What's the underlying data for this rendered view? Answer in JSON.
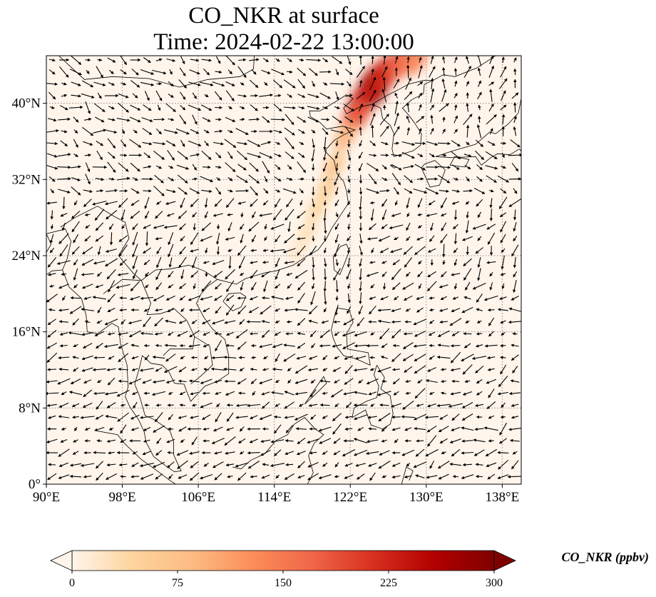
{
  "title": {
    "line1": "CO_NKR at surface",
    "line2": "Time: 2024-02-22 13:00:00"
  },
  "map": {
    "lon_range": [
      90,
      140
    ],
    "lat_range": [
      0,
      45
    ],
    "lon_ticks": [
      "90°E",
      "98°E",
      "106°E",
      "114°E",
      "122°E",
      "130°E",
      "138°E"
    ],
    "lon_tick_values": [
      90,
      98,
      106,
      114,
      122,
      130,
      138
    ],
    "lat_ticks": [
      "0°",
      "8°N",
      "16°N",
      "24°N",
      "32°N",
      "40°N"
    ],
    "lat_tick_values": [
      0,
      8,
      16,
      24,
      32,
      40
    ],
    "gridlines": "dotted",
    "background_color": "#fff5eb",
    "coastline_color": "#000000",
    "wind_vectors": true,
    "wind_arrow_color": "#000000"
  },
  "colorbar": {
    "label": "CO_NKR (ppbv)",
    "cmap": "OrRd",
    "ticks": [
      "0",
      "75",
      "150",
      "225",
      "300"
    ],
    "tick_values": [
      0,
      75,
      150,
      225,
      300
    ],
    "extend": "both",
    "colors": [
      "#fff5eb",
      "#fdd49e",
      "#fdbb84",
      "#fc8d59",
      "#ef6548",
      "#d7301f",
      "#b30000",
      "#7f0000"
    ]
  },
  "concentration_plume": [
    {
      "lon": 124.3,
      "lat": 41.5,
      "value": 290
    },
    {
      "lon": 124.8,
      "lat": 42.3,
      "value": 270
    },
    {
      "lon": 123.2,
      "lat": 40.0,
      "value": 230
    },
    {
      "lon": 125.8,
      "lat": 43.3,
      "value": 220
    },
    {
      "lon": 122.5,
      "lat": 38.5,
      "value": 180
    },
    {
      "lon": 127.2,
      "lat": 44.2,
      "value": 170
    },
    {
      "lon": 128.8,
      "lat": 44.6,
      "value": 140
    },
    {
      "lon": 121.5,
      "lat": 36.5,
      "value": 90
    },
    {
      "lon": 120.3,
      "lat": 33.5,
      "value": 70
    },
    {
      "lon": 119.5,
      "lat": 31.0,
      "value": 55
    },
    {
      "lon": 118.5,
      "lat": 29.0,
      "value": 40
    },
    {
      "lon": 117.5,
      "lat": 26.5,
      "value": 30
    },
    {
      "lon": 116.5,
      "lat": 24.5,
      "value": 20
    }
  ]
}
